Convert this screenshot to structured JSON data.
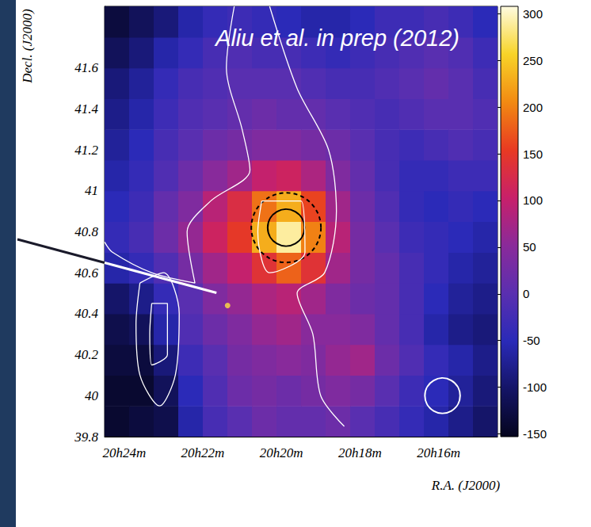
{
  "chart_data": {
    "type": "heatmap",
    "title": "Aliu et al. in prep (2012)",
    "x_label": "R.A. (J2000)",
    "y_label": "Decl. (J2000)",
    "grid": false,
    "xlim": [
      24.5,
      14.5
    ],
    "xticks": [
      {
        "value": 24,
        "label": "20h24m"
      },
      {
        "value": 22,
        "label": "20h22m"
      },
      {
        "value": 20,
        "label": "20h20m"
      },
      {
        "value": 18,
        "label": "20h18m"
      },
      {
        "value": 16,
        "label": "20h16m"
      }
    ],
    "ylim": [
      39.8,
      41.9
    ],
    "yticks": [
      39.8,
      40,
      40.2,
      40.4,
      40.6,
      40.8,
      41,
      41.2,
      41.4,
      41.6
    ],
    "x": [
      24.1875,
      23.5625,
      22.9375,
      22.3125,
      21.6875,
      21.0625,
      20.4375,
      19.8125,
      19.1875,
      18.5625,
      17.9375,
      17.3125,
      16.6875,
      16.0625,
      15.4375,
      14.8125
    ],
    "y": [
      39.875,
      40.025,
      40.175,
      40.325,
      40.475,
      40.625,
      40.775,
      40.925,
      41.075,
      41.225,
      41.375,
      41.525,
      41.675,
      41.825
    ],
    "z": [
      [
        -140,
        -130,
        -120,
        -60,
        -20,
        0,
        20,
        10,
        10,
        20,
        0,
        -20,
        -40,
        -60,
        -80,
        -100
      ],
      [
        -140,
        -140,
        -110,
        -50,
        -10,
        20,
        30,
        20,
        30,
        40,
        30,
        0,
        -30,
        -50,
        -70,
        -90
      ],
      [
        -130,
        -130,
        -90,
        -30,
        0,
        30,
        40,
        50,
        40,
        60,
        70,
        20,
        -10,
        -40,
        -60,
        -80
      ],
      [
        -120,
        -110,
        -60,
        -10,
        20,
        40,
        60,
        70,
        50,
        50,
        40,
        10,
        -20,
        -60,
        -80,
        -90
      ],
      [
        -100,
        -80,
        -40,
        0,
        40,
        60,
        80,
        90,
        70,
        40,
        20,
        10,
        -20,
        -50,
        -70,
        -80
      ],
      [
        -60,
        -40,
        -10,
        30,
        70,
        100,
        140,
        180,
        140,
        70,
        30,
        10,
        -20,
        -40,
        -60,
        -70
      ],
      [
        -40,
        -20,
        20,
        60,
        110,
        150,
        230,
        290,
        200,
        90,
        30,
        0,
        -30,
        -40,
        -50,
        -60
      ],
      [
        -50,
        -30,
        10,
        40,
        90,
        130,
        190,
        230,
        160,
        70,
        20,
        -10,
        -40,
        -50,
        -40,
        -50
      ],
      [
        -60,
        -40,
        -10,
        20,
        50,
        70,
        100,
        110,
        80,
        40,
        10,
        -20,
        -40,
        -40,
        -30,
        -30
      ],
      [
        -70,
        -50,
        -20,
        0,
        20,
        30,
        40,
        40,
        30,
        20,
        0,
        -20,
        -30,
        -20,
        -10,
        -20
      ],
      [
        -80,
        -60,
        -30,
        -10,
        0,
        10,
        20,
        10,
        10,
        0,
        -10,
        -20,
        -10,
        0,
        0,
        -10
      ],
      [
        -90,
        -70,
        -40,
        -20,
        -10,
        0,
        0,
        0,
        -10,
        -20,
        -20,
        -10,
        0,
        10,
        0,
        -20
      ],
      [
        -110,
        -90,
        -60,
        -40,
        -20,
        -10,
        -20,
        -20,
        -30,
        -40,
        -30,
        -20,
        -10,
        0,
        -10,
        -30
      ],
      [
        -130,
        -110,
        -90,
        -60,
        -40,
        -30,
        -40,
        -50,
        -60,
        -60,
        -50,
        -30,
        -30,
        -20,
        -30,
        -50
      ]
    ],
    "colorbar": {
      "range": [
        -153,
        308
      ],
      "ticks": [
        -150,
        -100,
        -50,
        0,
        50,
        100,
        150,
        200,
        250,
        300
      ],
      "colors": [
        "#05051e",
        "#141466",
        "#2a2ab8",
        "#5a2fb0",
        "#8a2a9a",
        "#c8206a",
        "#e83a22",
        "#f28a12",
        "#f8d428",
        "#fffbe0"
      ]
    },
    "circles": [
      {
        "ra": 19.88,
        "dec": 40.82,
        "radius": 0.09,
        "color": "#000000",
        "line_style": "solid"
      },
      {
        "ra": 19.88,
        "dec": 40.82,
        "radius": 0.17,
        "color": "#000000",
        "line_style": "dashed"
      },
      {
        "ra": 15.9,
        "dec": 40.0,
        "radius": 0.086,
        "color": "#ffffff",
        "line_style": "solid"
      }
    ],
    "contours": {
      "color": "#ffffff",
      "lines": [
        [
          [
            23.6,
            40.55
          ],
          [
            23.0,
            40.6
          ],
          [
            22.6,
            40.4
          ],
          [
            22.7,
            40.1
          ],
          [
            23.1,
            39.95
          ],
          [
            23.6,
            40.1
          ],
          [
            23.7,
            40.35
          ],
          [
            23.6,
            40.55
          ]
        ],
        [
          [
            23.3,
            40.45
          ],
          [
            22.9,
            40.45
          ],
          [
            22.9,
            40.2
          ],
          [
            23.3,
            40.15
          ],
          [
            23.35,
            40.3
          ],
          [
            23.3,
            40.45
          ]
        ],
        [
          [
            21.2,
            41.9
          ],
          [
            21.4,
            41.6
          ],
          [
            21.0,
            41.3
          ],
          [
            20.8,
            41.1
          ],
          [
            21.8,
            40.95
          ],
          [
            22.4,
            40.8
          ],
          [
            22.2,
            40.55
          ],
          [
            23.3,
            40.6
          ],
          [
            24.3,
            40.7
          ],
          [
            24.5,
            40.75
          ]
        ],
        [
          [
            20.3,
            41.9
          ],
          [
            19.6,
            41.5
          ],
          [
            18.8,
            41.2
          ],
          [
            18.6,
            40.9
          ],
          [
            18.9,
            40.6
          ],
          [
            19.6,
            40.5
          ],
          [
            19.2,
            40.3
          ],
          [
            19.0,
            40.0
          ],
          [
            18.4,
            39.85
          ]
        ],
        [
          [
            20.5,
            40.95
          ],
          [
            19.5,
            40.95
          ],
          [
            19.4,
            40.7
          ],
          [
            20.3,
            40.6
          ],
          [
            20.6,
            40.8
          ],
          [
            20.5,
            40.95
          ]
        ]
      ]
    },
    "marker_point": {
      "ra": 21.37,
      "dec": 40.44,
      "color": "#ffe040"
    }
  }
}
